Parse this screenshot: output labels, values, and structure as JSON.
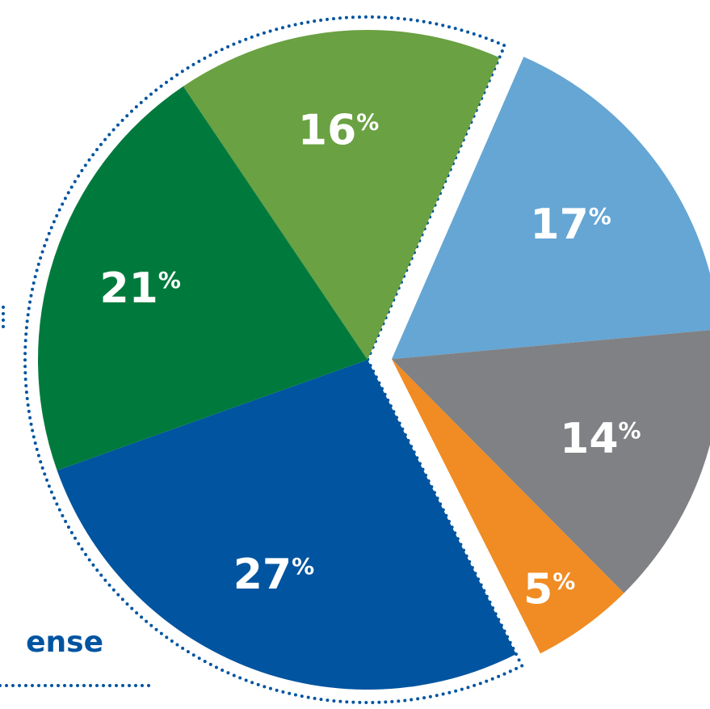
{
  "chart_data": {
    "type": "pie",
    "unit": "%",
    "slices": [
      {
        "value": 16,
        "label": "16",
        "color": "#6aa142"
      },
      {
        "value": 17,
        "label": "17",
        "color": "#65a6d4"
      },
      {
        "value": 14,
        "label": "14",
        "color": "#808184"
      },
      {
        "value": 5,
        "label": "5",
        "color": "#f08c23"
      },
      {
        "value": 27,
        "label": "27",
        "color": "#0054a0"
      },
      {
        "value": 21,
        "label": "21",
        "color": "#007a3c"
      }
    ],
    "exploded_group": [
      1,
      2,
      3
    ],
    "dotted_outline_group": [
      0,
      4,
      5
    ],
    "outline_color": "#0054a0",
    "side_label": {
      "text": "ense",
      "color": "#0054a0"
    }
  }
}
